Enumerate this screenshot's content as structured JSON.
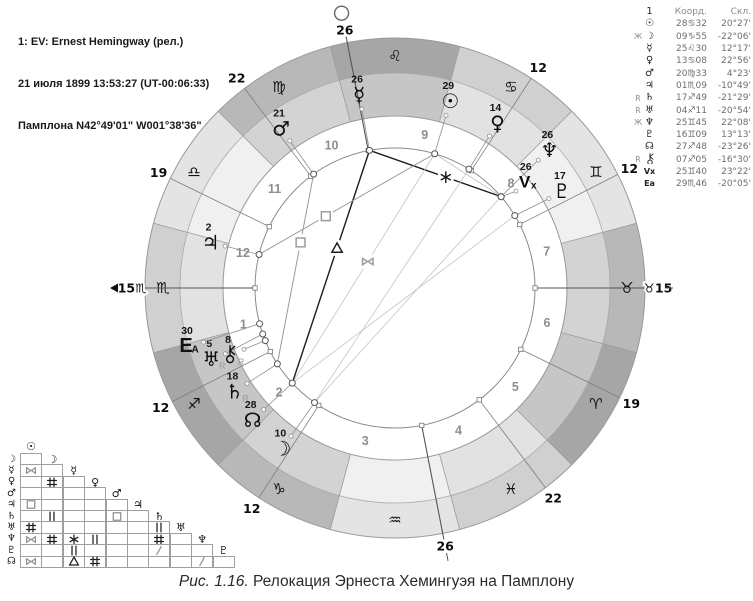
{
  "header": {
    "line1": "1: EV: Ernest Hemingway (рел.)",
    "line2": "21 июля 1899 13:53:27 (UT-00:06:33)",
    "line3": "Памплона N42°49'01\" W001°38'36\""
  },
  "caption": {
    "label": "Рис. 1.16.",
    "text": " Релокация Эрнеста Хемингуэя на Памплону"
  },
  "positions_table": {
    "headers": {
      "num": "1",
      "coord": "Коорд.",
      "decl": "Скл."
    },
    "rows": [
      {
        "marker": "",
        "planet": "sun",
        "glyph": "☉",
        "coord": "28♋32",
        "decl": "20°27'"
      },
      {
        "marker": "Ж",
        "planet": "moon",
        "glyph": "☽",
        "coord": "09♑55",
        "decl": "-22°06'"
      },
      {
        "marker": "",
        "planet": "mercury",
        "glyph": "☿",
        "coord": "25♌30",
        "decl": "12°17'"
      },
      {
        "marker": "",
        "planet": "venus",
        "glyph": "♀",
        "coord": "13♋08",
        "decl": "22°56'"
      },
      {
        "marker": "",
        "planet": "mars",
        "glyph": "♂",
        "coord": "20♍33",
        "decl": "4°23'"
      },
      {
        "marker": "",
        "planet": "jupiter",
        "glyph": "♃",
        "coord": "01♏09",
        "decl": "-10°49'"
      },
      {
        "marker": "R",
        "planet": "saturn",
        "glyph": "♄",
        "coord": "17♐49",
        "decl": "-21°29'"
      },
      {
        "marker": "R",
        "planet": "uranus",
        "glyph": "♅",
        "coord": "04♐11",
        "decl": "-20°54'"
      },
      {
        "marker": "Ж",
        "planet": "neptune",
        "glyph": "♆",
        "coord": "25♊45",
        "decl": "22°08'"
      },
      {
        "marker": "",
        "planet": "pluto",
        "glyph": "♇",
        "coord": "16♊09",
        "decl": "13°13'"
      },
      {
        "marker": "",
        "planet": "node",
        "glyph": "☊",
        "coord": "27♐48",
        "decl": "-23°26'"
      },
      {
        "marker": "R",
        "planet": "chiron",
        "glyph": "⚷",
        "coord": "07♐05",
        "decl": "-16°30'"
      },
      {
        "marker": "",
        "planet": "vertex",
        "glyph": "Vx",
        "coord": "25♊40",
        "decl": "23°22'"
      },
      {
        "marker": "",
        "planet": "east",
        "glyph": "Ea",
        "coord": "29♏46",
        "decl": "-20°05'"
      }
    ]
  },
  "chart": {
    "signs": [
      {
        "name": "aries",
        "glyph": "♈",
        "element": "fire"
      },
      {
        "name": "taurus",
        "glyph": "♉",
        "element": "earth"
      },
      {
        "name": "gemini",
        "glyph": "♊",
        "element": "air"
      },
      {
        "name": "cancer",
        "glyph": "♋",
        "element": "water"
      },
      {
        "name": "leo",
        "glyph": "♌",
        "element": "fire"
      },
      {
        "name": "virgo",
        "glyph": "♍",
        "element": "earth"
      },
      {
        "name": "libra",
        "glyph": "♎",
        "element": "air"
      },
      {
        "name": "scorpio",
        "glyph": "♏",
        "element": "water"
      },
      {
        "name": "sagittarius",
        "glyph": "♐",
        "element": "fire"
      },
      {
        "name": "capricorn",
        "glyph": "♑",
        "element": "earth"
      },
      {
        "name": "aquarius",
        "glyph": "♒",
        "element": "air"
      },
      {
        "name": "pisces",
        "glyph": "♓",
        "element": "water"
      }
    ],
    "element_colors": {
      "fire": {
        "ring": "#a6a6a6",
        "band": "#c6c6c6"
      },
      "earth": {
        "ring": "#b8b8b8",
        "band": "#d3d3d3"
      },
      "air": {
        "ring": "#e4e4e4",
        "band": "#f0f0f0"
      },
      "water": {
        "ring": "#d0d0d0",
        "band": "#e2e2e2"
      }
    },
    "houses": [
      {
        "house": 1,
        "cusp_lon": 225,
        "label": "15♏",
        "axis": "asc"
      },
      {
        "house": 2,
        "cusp_lon": 252,
        "label": "12"
      },
      {
        "house": 3,
        "cusp_lon": 282,
        "label": "12"
      },
      {
        "house": 4,
        "cusp_lon": 326,
        "label": "26",
        "axis": "ic"
      },
      {
        "house": 5,
        "cusp_lon": 352,
        "label": "22"
      },
      {
        "house": 6,
        "cusp_lon": 19,
        "label": "19"
      },
      {
        "house": 7,
        "cusp_lon": 45,
        "label": "♉15",
        "axis": "dsc"
      },
      {
        "house": 8,
        "cusp_lon": 72,
        "label": "12"
      },
      {
        "house": 9,
        "cusp_lon": 102,
        "label": "12"
      },
      {
        "house": 10,
        "cusp_lon": 146,
        "label": "26",
        "axis": "mc"
      },
      {
        "house": 11,
        "cusp_lon": 172,
        "label": "22"
      },
      {
        "house": 12,
        "cusp_lon": 199,
        "label": "19"
      }
    ],
    "planets": [
      {
        "name": "sun",
        "glyph": "☉",
        "lon": 118.53,
        "deg_label": "29"
      },
      {
        "name": "moon",
        "glyph": "☽",
        "lon": 279.92,
        "deg_label": "10"
      },
      {
        "name": "mercury",
        "glyph": "☿",
        "lon": 145.5,
        "deg_label": "26"
      },
      {
        "name": "venus",
        "glyph": "♀",
        "lon": 103.13,
        "deg_label": "14"
      },
      {
        "name": "mars",
        "glyph": "♂",
        "lon": 170.55,
        "deg_label": "21"
      },
      {
        "name": "jupiter",
        "glyph": "♃",
        "lon": 211.15,
        "deg_label": "2"
      },
      {
        "name": "saturn",
        "glyph": "♄",
        "lon": 257.82,
        "deg_label": "18",
        "retro": true
      },
      {
        "name": "uranus",
        "glyph": "♅",
        "lon": 244.18,
        "deg_label": "5",
        "retro": true
      },
      {
        "name": "neptune",
        "glyph": "♆",
        "lon": 85.75,
        "deg_label": "26"
      },
      {
        "name": "pluto",
        "glyph": "♇",
        "lon": 76.15,
        "deg_label": "17"
      },
      {
        "name": "node",
        "glyph": "☊",
        "lon": 267.8,
        "deg_label": "28"
      },
      {
        "name": "chiron",
        "glyph": "⚷",
        "lon": 247.08,
        "deg_label": "8",
        "retro": true
      },
      {
        "name": "vertex",
        "glyph": "Vx",
        "lon": 85.67,
        "deg_label": "26"
      },
      {
        "name": "east",
        "glyph": "Ea",
        "lon": 239.77,
        "deg_label": "30"
      }
    ],
    "aspect_lines": [
      {
        "from": "mercury",
        "to": "node",
        "kind": "trine",
        "tone": "dark",
        "t": 0.42
      },
      {
        "from": "mercury",
        "to": "neptune",
        "kind": "sextile",
        "tone": "dark",
        "t": 0.58
      },
      {
        "from": "sun",
        "to": "jupiter",
        "kind": "square",
        "tone": "mid",
        "t": 0.62
      },
      {
        "from": "mars",
        "to": "saturn",
        "kind": "square",
        "tone": "mid",
        "t": 0.36
      },
      {
        "from": "sun",
        "to": "node",
        "kind": "bowtie",
        "tone": "light",
        "t": 0.47
      },
      {
        "from": "moon",
        "to": "neptune",
        "kind": null,
        "tone": "light"
      },
      {
        "from": "node",
        "to": "pluto",
        "kind": null,
        "tone": "light"
      },
      {
        "from": "sun",
        "to": "neptune",
        "kind": null,
        "tone": "light"
      },
      {
        "from": "moon",
        "to": "venus",
        "kind": null,
        "tone": "light"
      }
    ]
  },
  "aspect_grid": {
    "order": [
      "☉",
      "☽",
      "☿",
      "♀",
      "♂",
      "♃",
      "♄",
      "♅",
      "♆",
      "♇",
      "☊"
    ],
    "cells": [
      {
        "r": 2,
        "c": 0,
        "k": "bowtie",
        "tone": "grey"
      },
      {
        "r": 3,
        "c": 1,
        "k": "hash",
        "tone": "black"
      },
      {
        "r": 5,
        "c": 0,
        "k": "square",
        "tone": "grey"
      },
      {
        "r": 6,
        "c": 1,
        "k": "parallel",
        "tone": "black"
      },
      {
        "r": 6,
        "c": 4,
        "k": "square",
        "tone": "grey"
      },
      {
        "r": 7,
        "c": 0,
        "k": "hash",
        "tone": "black"
      },
      {
        "r": 7,
        "c": 6,
        "k": "parallel",
        "tone": "black"
      },
      {
        "r": 8,
        "c": 0,
        "k": "bowtie",
        "tone": "grey"
      },
      {
        "r": 8,
        "c": 1,
        "k": "hash",
        "tone": "black"
      },
      {
        "r": 8,
        "c": 2,
        "k": "sextile",
        "tone": "black"
      },
      {
        "r": 8,
        "c": 3,
        "k": "parallel",
        "tone": "black"
      },
      {
        "r": 8,
        "c": 6,
        "k": "hash",
        "tone": "black"
      },
      {
        "r": 9,
        "c": 2,
        "k": "parallel",
        "tone": "black"
      },
      {
        "r": 9,
        "c": 6,
        "k": "slash",
        "tone": "grey"
      },
      {
        "r": 10,
        "c": 0,
        "k": "bowtie",
        "tone": "grey"
      },
      {
        "r": 10,
        "c": 2,
        "k": "trine",
        "tone": "black"
      },
      {
        "r": 10,
        "c": 3,
        "k": "hash",
        "tone": "black"
      },
      {
        "r": 10,
        "c": 8,
        "k": "slash",
        "tone": "grey"
      }
    ]
  }
}
